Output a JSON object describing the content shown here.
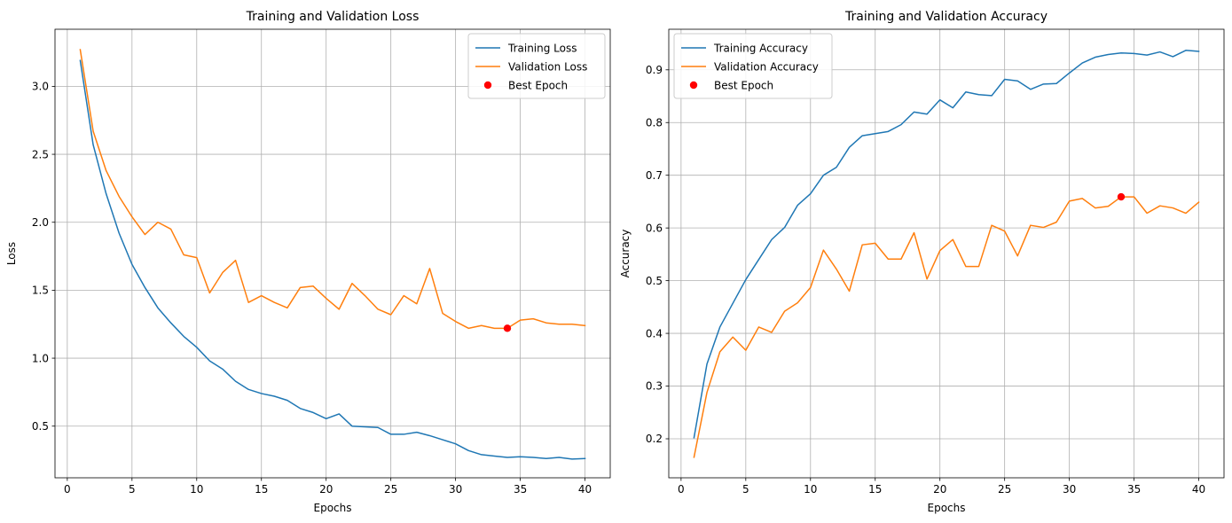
{
  "chart_data": [
    {
      "type": "line",
      "title": "Training and Validation Loss",
      "xlabel": "Epochs",
      "ylabel": "Loss",
      "xlim": [
        -0.95,
        41.95
      ],
      "ylim": [
        0.12,
        3.42
      ],
      "xticks": [
        0,
        5,
        10,
        15,
        20,
        25,
        30,
        35,
        40
      ],
      "yticks": [
        0.5,
        1.0,
        1.5,
        2.0,
        2.5,
        3.0
      ],
      "ytick_decimals": 1,
      "grid": true,
      "legend_position": "top-right",
      "x": [
        1,
        2,
        3,
        4,
        5,
        6,
        7,
        8,
        9,
        10,
        11,
        12,
        13,
        14,
        15,
        16,
        17,
        18,
        19,
        20,
        21,
        22,
        23,
        24,
        25,
        26,
        27,
        28,
        29,
        30,
        31,
        32,
        33,
        34,
        35,
        36,
        37,
        38,
        39,
        40
      ],
      "series": [
        {
          "name": "Training Loss",
          "color": "#1f77b4",
          "values": [
            3.19,
            2.57,
            2.21,
            1.92,
            1.69,
            1.52,
            1.37,
            1.26,
            1.16,
            1.08,
            0.98,
            0.92,
            0.83,
            0.77,
            0.74,
            0.72,
            0.69,
            0.63,
            0.6,
            0.555,
            0.59,
            0.5,
            0.495,
            0.49,
            0.44,
            0.44,
            0.455,
            0.43,
            0.4,
            0.37,
            0.32,
            0.29,
            0.28,
            0.27,
            0.275,
            0.27,
            0.262,
            0.27,
            0.258,
            0.262
          ]
        },
        {
          "name": "Validation Loss",
          "color": "#ff7f0e",
          "values": [
            3.27,
            2.67,
            2.38,
            2.19,
            2.04,
            1.91,
            2.0,
            1.95,
            1.76,
            1.74,
            1.48,
            1.63,
            1.72,
            1.41,
            1.46,
            1.41,
            1.37,
            1.52,
            1.53,
            1.44,
            1.36,
            1.55,
            1.46,
            1.36,
            1.32,
            1.46,
            1.4,
            1.66,
            1.33,
            1.27,
            1.22,
            1.24,
            1.22,
            1.22,
            1.28,
            1.29,
            1.26,
            1.25,
            1.25,
            1.24
          ]
        }
      ],
      "markers": [
        {
          "name": "Best Epoch",
          "color": "#ff0000",
          "x": 34,
          "y": 1.22
        }
      ]
    },
    {
      "type": "line",
      "title": "Training and Validation Accuracy",
      "xlabel": "Epochs",
      "ylabel": "Accuracy",
      "xlim": [
        -0.95,
        41.95
      ],
      "ylim": [
        0.126,
        0.977
      ],
      "xticks": [
        0,
        5,
        10,
        15,
        20,
        25,
        30,
        35,
        40
      ],
      "yticks": [
        0.2,
        0.3,
        0.4,
        0.5,
        0.6,
        0.7,
        0.8,
        0.9
      ],
      "ytick_decimals": 1,
      "grid": true,
      "legend_position": "top-left",
      "x": [
        1,
        2,
        3,
        4,
        5,
        6,
        7,
        8,
        9,
        10,
        11,
        12,
        13,
        14,
        15,
        16,
        17,
        18,
        19,
        20,
        21,
        22,
        23,
        24,
        25,
        26,
        27,
        28,
        29,
        30,
        31,
        32,
        33,
        34,
        35,
        36,
        37,
        38,
        39,
        40
      ],
      "series": [
        {
          "name": "Training Accuracy",
          "color": "#1f77b4",
          "values": [
            0.202,
            0.342,
            0.412,
            0.457,
            0.502,
            0.54,
            0.578,
            0.601,
            0.643,
            0.665,
            0.7,
            0.715,
            0.753,
            0.775,
            0.779,
            0.783,
            0.796,
            0.82,
            0.816,
            0.843,
            0.828,
            0.858,
            0.853,
            0.851,
            0.882,
            0.879,
            0.863,
            0.873,
            0.874,
            0.894,
            0.913,
            0.924,
            0.929,
            0.932,
            0.931,
            0.928,
            0.934,
            0.925,
            0.937,
            0.935
          ]
        },
        {
          "name": "Validation Accuracy",
          "color": "#ff7f0e",
          "values": [
            0.165,
            0.288,
            0.365,
            0.393,
            0.368,
            0.412,
            0.402,
            0.442,
            0.458,
            0.487,
            0.558,
            0.522,
            0.48,
            0.568,
            0.571,
            0.541,
            0.541,
            0.591,
            0.503,
            0.557,
            0.578,
            0.527,
            0.527,
            0.605,
            0.594,
            0.547,
            0.605,
            0.601,
            0.611,
            0.651,
            0.656,
            0.638,
            0.641,
            0.659,
            0.659,
            0.628,
            0.642,
            0.638,
            0.628,
            0.649
          ]
        }
      ],
      "markers": [
        {
          "name": "Best Epoch",
          "color": "#ff0000",
          "x": 34,
          "y": 0.659
        }
      ]
    }
  ]
}
